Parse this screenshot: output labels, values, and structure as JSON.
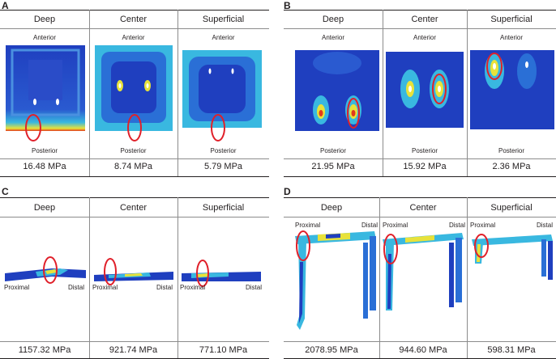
{
  "panels": [
    {
      "letter": "A",
      "columns": [
        {
          "label": "Deep",
          "value": "16.48 MPa"
        },
        {
          "label": "Center",
          "value": "8.74 MPa"
        },
        {
          "label": "Superficial",
          "value": "5.79 MPa"
        }
      ],
      "top_label": "Anterior",
      "bottom_label": "Posterior"
    },
    {
      "letter": "B",
      "columns": [
        {
          "label": "Deep",
          "value": "21.95 MPa"
        },
        {
          "label": "Center",
          "value": "15.92 MPa"
        },
        {
          "label": "Superficial",
          "value": "2.36 MPa"
        }
      ],
      "top_label": "Anterior",
      "bottom_label": "Posterior"
    },
    {
      "letter": "C",
      "columns": [
        {
          "label": "Deep",
          "value": "1157.32 MPa"
        },
        {
          "label": "Center",
          "value": "921.74 MPa"
        },
        {
          "label": "Superficial",
          "value": "771.10 MPa"
        }
      ],
      "left_label": "Proximal",
      "right_label": "Distal"
    },
    {
      "letter": "D",
      "columns": [
        {
          "label": "Deep",
          "value": "2078.95 MPa"
        },
        {
          "label": "Center",
          "value": "944.60 MPa"
        },
        {
          "label": "Superficial",
          "value": "598.31 MPa"
        }
      ],
      "left_label": "Proximal",
      "right_label": "Distal"
    }
  ],
  "colors": {
    "stress_low": "#1f3fbf",
    "stress_mid": "#39b8e0",
    "stress_high": "#e8e23a",
    "stress_peak": "#e23a1c",
    "highlight_ring": "#e0202a"
  }
}
